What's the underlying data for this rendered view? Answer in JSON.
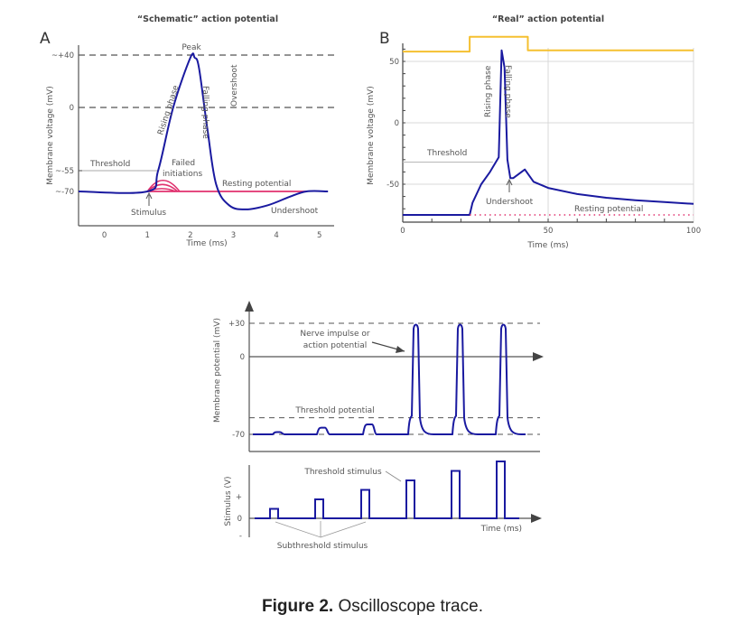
{
  "figure": {
    "caption_bold": "Figure 2.",
    "caption_text": " Oscilloscope trace."
  },
  "colors": {
    "trace": "#1a1aa0",
    "pink": "#e0306e",
    "yellow": "#f5c030",
    "axis": "#555555",
    "grid": "#d8d8d8",
    "text": "#444444"
  },
  "chart_data": [
    {
      "type": "line",
      "panel_letter": "A",
      "title": "“Schematic” action potential",
      "xlabel": "Time (ms)",
      "ylabel": "Membrane voltage (mV)",
      "xlim": [
        -0.6,
        5.3
      ],
      "ylim": [
        -90,
        50
      ],
      "x_ticks": [
        0,
        1,
        2,
        3,
        4,
        5
      ],
      "y_ticks": [
        {
          "value": 40,
          "label": "~+40"
        },
        {
          "value": 0,
          "label": "0"
        },
        {
          "value": -55,
          "label": "~-55"
        },
        {
          "value": -70,
          "label": "~-70"
        }
      ],
      "reference_lines": [
        {
          "value": 40,
          "style": "dashed"
        },
        {
          "value": 0,
          "style": "dashed"
        }
      ],
      "series": [
        {
          "name": "Action potential",
          "color": "trace",
          "x": [
            -0.6,
            1.0,
            1.25,
            1.6,
            2.0,
            2.1,
            2.2,
            2.4,
            2.6,
            2.9,
            3.3,
            3.8,
            4.3,
            4.7,
            5.2
          ],
          "y": [
            -70,
            -70,
            -55,
            0,
            38,
            38,
            30,
            -20,
            -65,
            -80,
            -83,
            -80,
            -74,
            -70,
            -70
          ]
        },
        {
          "name": "Resting potential",
          "color": "pink",
          "x": [
            1.0,
            4.7
          ],
          "y": [
            -70,
            -70
          ]
        },
        {
          "name": "Failed initiation 1",
          "color": "pink",
          "x": [
            1.0,
            1.35,
            1.75
          ],
          "y": [
            -70,
            -62,
            -70
          ]
        },
        {
          "name": "Failed initiation 2",
          "color": "pink",
          "x": [
            1.0,
            1.35,
            1.7
          ],
          "y": [
            -70,
            -65,
            -70
          ]
        },
        {
          "name": "Failed initiation 3",
          "color": "pink",
          "x": [
            1.0,
            1.35,
            1.65
          ],
          "y": [
            -70,
            -68,
            -70
          ]
        }
      ],
      "annotations": [
        "Peak",
        "Rising phase",
        "Falling phase",
        "Overshoot",
        "Threshold",
        "Failed initiations",
        "Resting potential",
        "Stimulus",
        "Undershoot"
      ]
    },
    {
      "type": "line",
      "panel_letter": "B",
      "title": "“Real” action potential",
      "xlabel": "Time (ms)",
      "ylabel": "Membrane voltage (mV)",
      "xlim": [
        0,
        100
      ],
      "ylim": [
        -80,
        70
      ],
      "x_ticks": [
        0,
        50,
        100
      ],
      "y_ticks": [
        50,
        0,
        -50
      ],
      "grid": true,
      "series": [
        {
          "name": "Membrane voltage",
          "color": "trace",
          "x": [
            0,
            23,
            24,
            27,
            30,
            33,
            34,
            35,
            36,
            37,
            38,
            42,
            45,
            50,
            60,
            70,
            80,
            90,
            100
          ],
          "y": [
            -75,
            -75,
            -65,
            -50,
            -40,
            -28,
            59,
            45,
            -30,
            -45,
            -45,
            -38,
            -48,
            -53,
            -58,
            -61,
            -63,
            -64.5,
            -66
          ]
        },
        {
          "name": "Stimulus",
          "color": "yellow",
          "x": [
            0,
            23,
            23,
            43,
            43,
            100
          ],
          "y": [
            58,
            58,
            70,
            70,
            59,
            59
          ]
        },
        {
          "name": "Resting potential",
          "color": "pink",
          "style": "dotted",
          "x": [
            23,
            100
          ],
          "y": [
            -75,
            -75
          ]
        },
        {
          "name": "Threshold",
          "color": "grid",
          "x": [
            0,
            31
          ],
          "y": [
            -32,
            -32
          ]
        }
      ],
      "annotations": [
        "Rising phase",
        "Falling phase",
        "Threshold",
        "Undershoot",
        "Resting potential"
      ]
    },
    {
      "type": "line",
      "panel_letter": "",
      "title": "",
      "xlabel": "Time (ms)",
      "ylabel": "Membrane potential (mV)",
      "ylim": [
        -80,
        40
      ],
      "y_ticks": [
        {
          "value": 30,
          "label": "+30"
        },
        {
          "value": 0,
          "label": "0"
        },
        {
          "value": -70,
          "label": "-70"
        }
      ],
      "reference_lines": [
        {
          "value": 30,
          "style": "dashed"
        },
        {
          "value": -55,
          "style": "dashed"
        },
        {
          "value": -70,
          "style": "dashed"
        }
      ],
      "pulses": [
        {
          "t": 1,
          "peak": -68,
          "spike": false
        },
        {
          "t": 2,
          "peak": -64,
          "spike": false
        },
        {
          "t": 3,
          "peak": -61,
          "spike": false
        },
        {
          "t": 4,
          "peak": 30,
          "spike": true
        },
        {
          "t": 5,
          "peak": 30,
          "spike": true
        },
        {
          "t": 6,
          "peak": 30,
          "spike": true
        }
      ],
      "annotations": [
        "Nerve impulse or action potential",
        "Threshold potential"
      ]
    },
    {
      "type": "line",
      "panel_letter": "",
      "xlabel": "Time (ms)",
      "ylabel": "Stimulus (V)",
      "y_ticks": [
        "+",
        "0",
        "-"
      ],
      "stimulus_amplitudes": [
        1,
        2,
        3,
        4,
        5,
        6
      ],
      "annotations": [
        "Threshold stimulus",
        "Subthreshold stimulus"
      ]
    }
  ]
}
